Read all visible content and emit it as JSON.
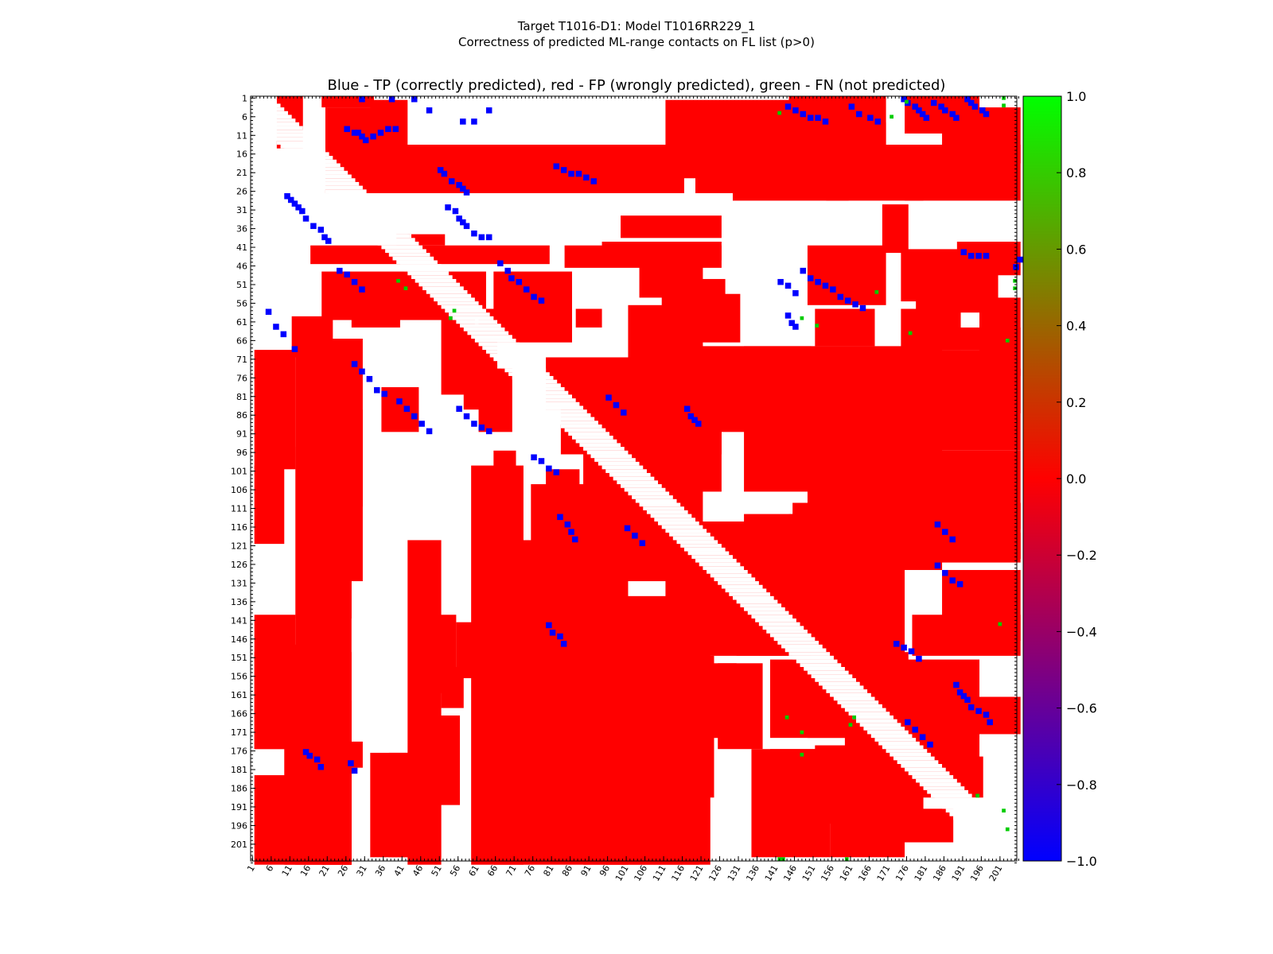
{
  "figure": {
    "title_line1": "Target T1016-D1: Model T1016RR229_1",
    "title_line2": "Correctness of predicted ML-range contacts on FL list (p>0)",
    "subtitle": "Blue - TP (correctly predicted), red - FP (wrongly predicted), green - FN (not predicted)"
  },
  "chart_data": {
    "type": "heatmap",
    "title": "Target T1016-D1: Model T1016RR229_1 / Correctness of predicted ML-range contacts on FL list (p>0)",
    "subtitle": "Blue - TP (correctly predicted), red - FP (wrongly predicted), green - FN (not predicted)",
    "n_residues": 203,
    "axis_range": [
      1,
      203
    ],
    "xticks": [
      1,
      6,
      11,
      16,
      21,
      26,
      31,
      36,
      41,
      46,
      51,
      56,
      61,
      66,
      71,
      76,
      81,
      86,
      91,
      96,
      101,
      106,
      111,
      116,
      121,
      126,
      131,
      136,
      141,
      146,
      151,
      156,
      161,
      166,
      171,
      176,
      181,
      186,
      191,
      196,
      201
    ],
    "yticks": [
      1,
      6,
      11,
      16,
      21,
      26,
      31,
      36,
      41,
      46,
      51,
      56,
      61,
      66,
      71,
      76,
      81,
      86,
      91,
      96,
      101,
      106,
      111,
      116,
      121,
      126,
      131,
      136,
      141,
      146,
      151,
      156,
      161,
      166,
      171,
      176,
      181,
      186,
      191,
      196,
      201
    ],
    "y_inverted": true,
    "value_meaning": {
      "TP": -1.0,
      "FP": 0.0,
      "FN": 1.0
    },
    "colors": {
      "TP": "#0000ff",
      "FP": "#ff0000",
      "FN": "#00cc00"
    },
    "colorbar": {
      "vmin": -1.0,
      "vmax": 1.0,
      "ticks": [
        "1.0",
        "0.8",
        "0.6",
        "0.4",
        "0.2",
        "0.0",
        "−0.2",
        "−0.4",
        "−0.6",
        "−0.8",
        "−1.0"
      ],
      "gradient": [
        "#00ff00",
        "#ff0000",
        "#0000ff"
      ]
    },
    "fp_regions": [
      [
        21,
        4,
        40,
        26
      ],
      [
        8,
        1,
        14,
        14
      ],
      [
        20,
        1,
        33,
        3
      ],
      [
        17,
        41,
        80,
        45
      ],
      [
        20,
        48,
        63,
        60
      ],
      [
        33,
        2,
        42,
        14
      ],
      [
        38,
        14,
        82,
        26
      ],
      [
        64,
        14,
        116,
        26
      ],
      [
        90,
        14,
        126,
        22
      ],
      [
        100,
        33,
        126,
        38
      ],
      [
        85,
        41,
        126,
        46
      ],
      [
        95,
        40,
        126,
        44
      ],
      [
        105,
        46,
        121,
        54
      ],
      [
        88,
        58,
        94,
        62
      ],
      [
        80,
        71,
        126,
        84
      ],
      [
        84,
        84,
        126,
        96
      ],
      [
        92,
        85,
        126,
        106
      ],
      [
        142,
        84,
        195,
        92
      ],
      [
        158,
        96,
        206,
        116
      ],
      [
        175,
        110,
        206,
        120
      ],
      [
        146,
        110,
        206,
        124
      ],
      [
        175,
        121,
        206,
        124
      ],
      [
        150,
        104,
        172,
        110
      ],
      [
        102,
        57,
        121,
        82
      ],
      [
        90,
        96,
        121,
        130
      ],
      [
        112,
        115,
        150,
        150
      ],
      [
        133,
        68,
        185,
        106
      ],
      [
        148,
        69,
        206,
        95
      ],
      [
        118,
        68,
        150,
        90
      ],
      [
        196,
        55,
        206,
        75
      ],
      [
        177,
        74,
        206,
        85
      ],
      [
        181,
        118,
        206,
        125
      ],
      [
        186,
        128,
        206,
        146
      ],
      [
        178,
        140,
        206,
        150
      ],
      [
        160,
        150,
        176,
        178
      ],
      [
        157,
        148,
        175,
        160
      ],
      [
        168,
        162,
        206,
        171
      ],
      [
        165,
        165,
        195,
        180
      ],
      [
        115,
        54,
        131,
        66
      ],
      [
        111,
        50,
        127,
        60
      ],
      [
        133,
        113,
        150,
        128
      ],
      [
        145,
        113,
        185,
        127
      ],
      [
        137,
        118,
        175,
        150
      ],
      [
        130,
        128,
        160,
        145
      ],
      [
        118,
        153,
        130,
        172
      ],
      [
        140,
        152,
        195,
        172
      ],
      [
        150,
        160,
        190,
        172
      ],
      [
        135,
        176,
        155,
        204
      ],
      [
        140,
        176,
        170,
        190
      ],
      [
        152,
        175,
        180,
        195
      ],
      [
        156,
        186,
        175,
        204
      ],
      [
        175,
        192,
        188,
        200
      ],
      [
        166,
        178,
        196,
        188
      ],
      [
        40,
        38,
        52,
        40
      ],
      [
        62,
        58,
        74,
        64
      ],
      [
        58,
        62,
        65,
        78
      ],
      [
        66,
        48,
        86,
        66
      ],
      [
        76,
        51,
        86,
        58
      ],
      [
        28,
        55,
        40,
        62
      ],
      [
        12,
        60,
        22,
        70
      ],
      [
        22,
        85,
        30,
        110
      ],
      [
        36,
        79,
        45,
        90
      ],
      [
        52,
        59,
        60,
        80
      ],
      [
        58,
        65,
        66,
        84
      ],
      [
        62,
        74,
        70,
        90
      ],
      [
        13,
        70,
        27,
        206
      ],
      [
        17,
        66,
        30,
        130
      ],
      [
        13,
        95,
        27,
        140
      ],
      [
        2,
        69,
        12,
        100
      ],
      [
        2,
        100,
        9,
        120
      ],
      [
        2,
        140,
        12,
        175
      ],
      [
        2,
        150,
        27,
        175
      ],
      [
        10,
        163,
        27,
        206
      ],
      [
        2,
        183,
        27,
        206
      ],
      [
        20,
        174,
        27,
        206
      ],
      [
        8,
        148,
        20,
        170
      ],
      [
        27,
        174,
        30,
        180
      ],
      [
        33,
        177,
        42,
        204
      ],
      [
        38,
        177,
        51,
        204
      ],
      [
        43,
        120,
        51,
        206
      ],
      [
        46,
        140,
        55,
        160
      ],
      [
        50,
        167,
        56,
        190
      ],
      [
        52,
        154,
        57,
        164
      ],
      [
        56,
        142,
        68,
        156
      ],
      [
        61,
        132,
        82,
        160
      ],
      [
        60,
        100,
        73,
        206
      ],
      [
        66,
        96,
        71,
        130
      ],
      [
        66,
        130,
        101,
        206
      ],
      [
        72,
        120,
        96,
        175
      ],
      [
        76,
        105,
        95,
        140
      ],
      [
        80,
        101,
        88,
        145
      ],
      [
        88,
        107,
        100,
        145
      ],
      [
        90,
        135,
        120,
        206
      ],
      [
        96,
        150,
        123,
        206
      ],
      [
        100,
        151,
        124,
        188
      ],
      [
        100,
        158,
        120,
        204
      ],
      [
        115,
        158,
        124,
        170
      ],
      [
        120,
        165,
        130,
        172
      ],
      [
        126,
        153,
        137,
        175
      ],
      [
        130,
        160,
        136,
        168
      ],
      [
        131,
        145,
        142,
        150
      ],
      [
        150,
        41,
        170,
        56
      ],
      [
        152,
        58,
        167,
        67
      ],
      [
        175,
        42,
        200,
        55
      ],
      [
        179,
        50,
        200,
        58
      ],
      [
        175,
        58,
        190,
        68
      ],
      [
        186,
        63,
        206,
        68
      ],
      [
        176,
        1,
        195,
        10
      ],
      [
        186,
        4,
        206,
        18
      ],
      [
        176,
        14,
        206,
        28
      ],
      [
        145,
        1,
        170,
        14
      ],
      [
        155,
        14,
        180,
        28
      ],
      [
        131,
        4,
        162,
        10
      ],
      [
        130,
        14,
        160,
        28
      ],
      [
        120,
        14,
        140,
        26
      ],
      [
        112,
        2,
        148,
        14
      ],
      [
        142,
        8,
        170,
        22
      ],
      [
        170,
        30,
        176,
        42
      ],
      [
        190,
        40,
        206,
        48
      ],
      [
        190,
        50,
        200,
        56
      ]
    ],
    "tp_contacts": [
      [
        30,
        1
      ],
      [
        38,
        1
      ],
      [
        44,
        1
      ],
      [
        48,
        4
      ],
      [
        57,
        7
      ],
      [
        60,
        7
      ],
      [
        64,
        4
      ],
      [
        26,
        9
      ],
      [
        28,
        10
      ],
      [
        29,
        10
      ],
      [
        30,
        11
      ],
      [
        31,
        12
      ],
      [
        33,
        11
      ],
      [
        35,
        10
      ],
      [
        37,
        9
      ],
      [
        39,
        9
      ],
      [
        51,
        20
      ],
      [
        52,
        21
      ],
      [
        54,
        23
      ],
      [
        56,
        24
      ],
      [
        57,
        25
      ],
      [
        58,
        26
      ],
      [
        53,
        30
      ],
      [
        55,
        31
      ],
      [
        56,
        33
      ],
      [
        57,
        34
      ],
      [
        58,
        35
      ],
      [
        60,
        37
      ],
      [
        62,
        38
      ],
      [
        64,
        38
      ],
      [
        67,
        45
      ],
      [
        69,
        47
      ],
      [
        70,
        49
      ],
      [
        72,
        50
      ],
      [
        74,
        52
      ],
      [
        76,
        54
      ],
      [
        78,
        55
      ],
      [
        82,
        19
      ],
      [
        84,
        20
      ],
      [
        86,
        21
      ],
      [
        88,
        21
      ],
      [
        90,
        22
      ],
      [
        92,
        23
      ],
      [
        144,
        3
      ],
      [
        146,
        4
      ],
      [
        148,
        5
      ],
      [
        150,
        6
      ],
      [
        152,
        6
      ],
      [
        154,
        7
      ],
      [
        161,
        3
      ],
      [
        163,
        5
      ],
      [
        166,
        6
      ],
      [
        168,
        7
      ],
      [
        175,
        1
      ],
      [
        176,
        2
      ],
      [
        178,
        3
      ],
      [
        179,
        4
      ],
      [
        180,
        5
      ],
      [
        181,
        6
      ],
      [
        183,
        2
      ],
      [
        185,
        3
      ],
      [
        186,
        4
      ],
      [
        188,
        5
      ],
      [
        189,
        6
      ],
      [
        192,
        1
      ],
      [
        193,
        2
      ],
      [
        194,
        3
      ],
      [
        196,
        4
      ],
      [
        197,
        5
      ],
      [
        10,
        27
      ],
      [
        11,
        28
      ],
      [
        12,
        29
      ],
      [
        13,
        30
      ],
      [
        14,
        31
      ],
      [
        15,
        33
      ],
      [
        17,
        35
      ],
      [
        19,
        36
      ],
      [
        20,
        38
      ],
      [
        21,
        39
      ],
      [
        5,
        58
      ],
      [
        7,
        62
      ],
      [
        9,
        64
      ],
      [
        12,
        68
      ],
      [
        28,
        72
      ],
      [
        30,
        74
      ],
      [
        32,
        76
      ],
      [
        34,
        79
      ],
      [
        36,
        80
      ],
      [
        40,
        82
      ],
      [
        42,
        84
      ],
      [
        44,
        86
      ],
      [
        46,
        88
      ],
      [
        48,
        90
      ],
      [
        24,
        47
      ],
      [
        26,
        48
      ],
      [
        28,
        50
      ],
      [
        30,
        52
      ],
      [
        56,
        84
      ],
      [
        58,
        86
      ],
      [
        60,
        88
      ],
      [
        62,
        89
      ],
      [
        64,
        90
      ],
      [
        76,
        97
      ],
      [
        78,
        98
      ],
      [
        80,
        100
      ],
      [
        82,
        101
      ],
      [
        83,
        113
      ],
      [
        85,
        115
      ],
      [
        86,
        117
      ],
      [
        87,
        119
      ],
      [
        101,
        116
      ],
      [
        103,
        118
      ],
      [
        105,
        120
      ],
      [
        117,
        84
      ],
      [
        118,
        86
      ],
      [
        119,
        87
      ],
      [
        120,
        88
      ],
      [
        148,
        47
      ],
      [
        150,
        49
      ],
      [
        152,
        50
      ],
      [
        154,
        51
      ],
      [
        156,
        52
      ],
      [
        158,
        54
      ],
      [
        160,
        55
      ],
      [
        162,
        56
      ],
      [
        164,
        57
      ],
      [
        184,
        126
      ],
      [
        186,
        128
      ],
      [
        188,
        130
      ],
      [
        190,
        131
      ],
      [
        173,
        147
      ],
      [
        175,
        148
      ],
      [
        177,
        149
      ],
      [
        179,
        151
      ],
      [
        189,
        158
      ],
      [
        190,
        160
      ],
      [
        191,
        161
      ],
      [
        192,
        162
      ],
      [
        193,
        164
      ],
      [
        195,
        165
      ],
      [
        197,
        166
      ],
      [
        198,
        168
      ],
      [
        15,
        176
      ],
      [
        16,
        177
      ],
      [
        18,
        178
      ],
      [
        19,
        180
      ],
      [
        27,
        179
      ],
      [
        28,
        181
      ],
      [
        80,
        142
      ],
      [
        81,
        144
      ],
      [
        83,
        145
      ],
      [
        84,
        147
      ],
      [
        96,
        81
      ],
      [
        98,
        83
      ],
      [
        100,
        85
      ],
      [
        142,
        50
      ],
      [
        144,
        51
      ],
      [
        146,
        53
      ],
      [
        144,
        59
      ],
      [
        145,
        61
      ],
      [
        146,
        62
      ],
      [
        184,
        115
      ],
      [
        186,
        117
      ],
      [
        188,
        119
      ],
      [
        176,
        168
      ],
      [
        178,
        170
      ],
      [
        180,
        172
      ],
      [
        182,
        174
      ],
      [
        191,
        42
      ],
      [
        193,
        43
      ],
      [
        195,
        43
      ],
      [
        197,
        43
      ],
      [
        206,
        44
      ],
      [
        205,
        46
      ]
    ],
    "fn_contacts": [
      [
        202,
        1
      ],
      [
        176,
        2
      ],
      [
        202,
        3
      ],
      [
        172,
        6
      ],
      [
        40,
        50
      ],
      [
        42,
        52
      ],
      [
        55,
        58
      ],
      [
        54,
        60
      ],
      [
        148,
        60
      ],
      [
        152,
        62
      ],
      [
        177,
        64
      ],
      [
        203,
        66
      ],
      [
        144,
        167
      ],
      [
        148,
        171
      ],
      [
        148,
        177
      ],
      [
        195,
        188
      ],
      [
        202,
        192
      ],
      [
        203,
        197
      ],
      [
        205,
        50
      ],
      [
        205,
        52
      ],
      [
        162,
        167
      ],
      [
        161,
        169
      ],
      [
        160,
        205
      ],
      [
        143,
        205
      ],
      [
        142,
        205
      ],
      [
        142,
        5
      ],
      [
        168,
        53
      ],
      [
        201,
        142
      ]
    ]
  }
}
